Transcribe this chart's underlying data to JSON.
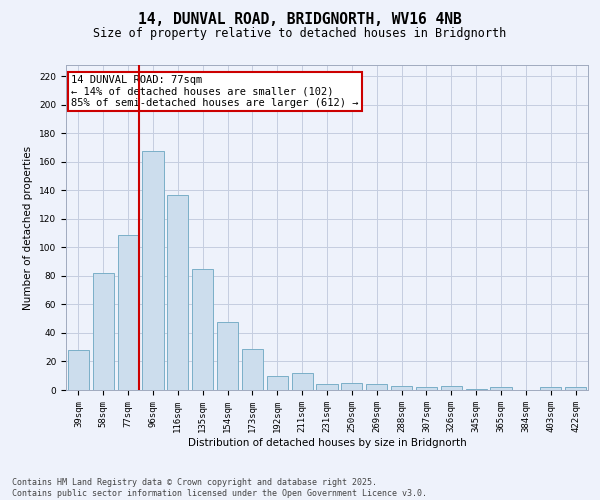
{
  "title": "14, DUNVAL ROAD, BRIDGNORTH, WV16 4NB",
  "subtitle": "Size of property relative to detached houses in Bridgnorth",
  "xlabel": "Distribution of detached houses by size in Bridgnorth",
  "ylabel": "Number of detached properties",
  "categories": [
    "39sqm",
    "58sqm",
    "77sqm",
    "96sqm",
    "116sqm",
    "135sqm",
    "154sqm",
    "173sqm",
    "192sqm",
    "211sqm",
    "231sqm",
    "250sqm",
    "269sqm",
    "288sqm",
    "307sqm",
    "326sqm",
    "345sqm",
    "365sqm",
    "384sqm",
    "403sqm",
    "422sqm"
  ],
  "values": [
    28,
    82,
    109,
    168,
    137,
    85,
    48,
    29,
    10,
    12,
    4,
    5,
    4,
    3,
    2,
    3,
    1,
    2,
    0,
    2,
    2
  ],
  "bar_color": "#ccdded",
  "bar_edge_color": "#7aafc8",
  "vline_color": "#cc0000",
  "annotation_text": "14 DUNVAL ROAD: 77sqm\n← 14% of detached houses are smaller (102)\n85% of semi-detached houses are larger (612) →",
  "annotation_box_color": "#ffffff",
  "annotation_box_edge": "#cc0000",
  "ylim": [
    0,
    228
  ],
  "yticks": [
    0,
    20,
    40,
    60,
    80,
    100,
    120,
    140,
    160,
    180,
    200,
    220
  ],
  "footer_line1": "Contains HM Land Registry data © Crown copyright and database right 2025.",
  "footer_line2": "Contains public sector information licensed under the Open Government Licence v3.0.",
  "background_color": "#eef2fb",
  "grid_color": "#c5cde0",
  "title_fontsize": 10.5,
  "subtitle_fontsize": 8.5,
  "axis_label_fontsize": 7.5,
  "tick_fontsize": 6.5,
  "annotation_fontsize": 7.5,
  "footer_fontsize": 6.0
}
